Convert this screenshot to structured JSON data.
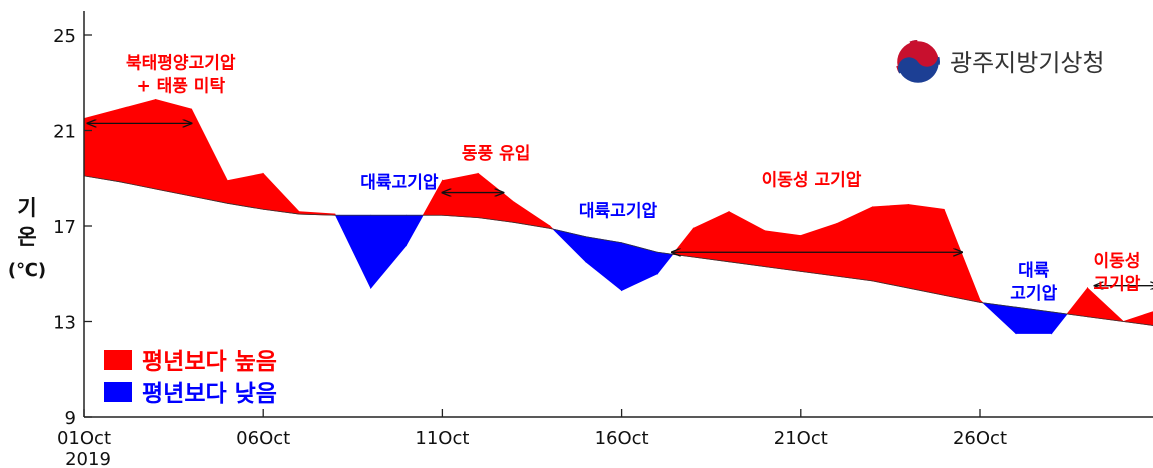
{
  "chart_data": {
    "type": "area",
    "ylabel_lines": [
      "기",
      "온",
      "(℃)"
    ],
    "ylim": [
      9,
      25
    ],
    "yticks": [
      9,
      13,
      17,
      21,
      25
    ],
    "xlim": [
      1,
      30
    ],
    "xticks": [
      {
        "x": 1,
        "label": "01Oct"
      },
      {
        "x": 6,
        "label": "06Oct"
      },
      {
        "x": 11,
        "label": "11Oct"
      },
      {
        "x": 16,
        "label": "16Oct"
      },
      {
        "x": 21,
        "label": "21Oct"
      },
      {
        "x": 26,
        "label": "26Oct"
      }
    ],
    "year_label": "2019",
    "days": [
      1,
      2,
      3,
      4,
      5,
      6,
      7,
      8,
      9,
      10,
      11,
      12,
      13,
      14,
      15,
      16,
      17,
      18,
      19,
      20,
      21,
      22,
      23,
      24,
      25,
      26,
      27,
      28,
      29,
      30,
      31
    ],
    "observed": [
      21.5,
      21.9,
      22.3,
      21.9,
      18.9,
      19.2,
      17.6,
      17.5,
      14.4,
      16.2,
      18.9,
      19.2,
      18.0,
      17.0,
      15.5,
      14.3,
      15.0,
      16.9,
      17.6,
      16.8,
      16.6,
      17.1,
      17.8,
      17.9,
      17.7,
      13.9,
      12.5,
      12.5,
      14.4,
      13.0,
      13.5
    ],
    "normal": [
      19.1,
      18.85,
      18.55,
      18.25,
      17.95,
      17.7,
      17.5,
      17.45,
      17.45,
      17.45,
      17.45,
      17.35,
      17.15,
      16.9,
      16.55,
      16.3,
      15.9,
      15.7,
      15.5,
      15.3,
      15.1,
      14.9,
      14.7,
      14.4,
      14.1,
      13.8,
      13.6,
      13.4,
      13.2,
      13.0,
      12.8
    ],
    "series": [
      {
        "name": "평년보다 높음",
        "color": "#ff0000"
      },
      {
        "name": "평년보다 낮음",
        "color": "#0000ff"
      }
    ],
    "legend_position": "bottom-left",
    "annotations": [
      {
        "lines": [
          "북태평양고기압",
          "+ 태풍 미탁"
        ],
        "color": "#ff0000",
        "x": 3.7,
        "y": 23.6
      },
      {
        "lines": [
          "대륙고기압"
        ],
        "color": "#0000ff",
        "x": 9.8,
        "y": 18.6
      },
      {
        "lines": [
          "동풍 유입"
        ],
        "color": "#ff0000",
        "x": 12.5,
        "y": 19.8
      },
      {
        "lines": [
          "대륙고기압"
        ],
        "color": "#0000ff",
        "x": 15.9,
        "y": 17.4
      },
      {
        "lines": [
          "이동성 고기압"
        ],
        "color": "#ff0000",
        "x": 21.3,
        "y": 18.7
      },
      {
        "lines": [
          "대륙",
          "고기압"
        ],
        "color": "#0000ff",
        "x": 27.5,
        "y": 14.9
      },
      {
        "lines": [
          "이동성",
          "고기압"
        ],
        "color": "#ff0000",
        "x": 30.3,
        "y": 15.3
      }
    ],
    "arrows": [
      {
        "x1": 1.1,
        "x2": 4.0,
        "y": 21.3
      },
      {
        "x1": 11.0,
        "x2": 12.7,
        "y": 18.4
      },
      {
        "x1": 17.4,
        "x2": 25.5,
        "y": 15.9
      },
      {
        "x1": 29.2,
        "x2": 31.0,
        "y": 14.5
      }
    ]
  },
  "logo": {
    "text": "광주지방기상청",
    "icon": "kma-taegeuk-icon"
  },
  "colors": {
    "above": "#ff0000",
    "below": "#0000ff",
    "axis": "#222222"
  }
}
